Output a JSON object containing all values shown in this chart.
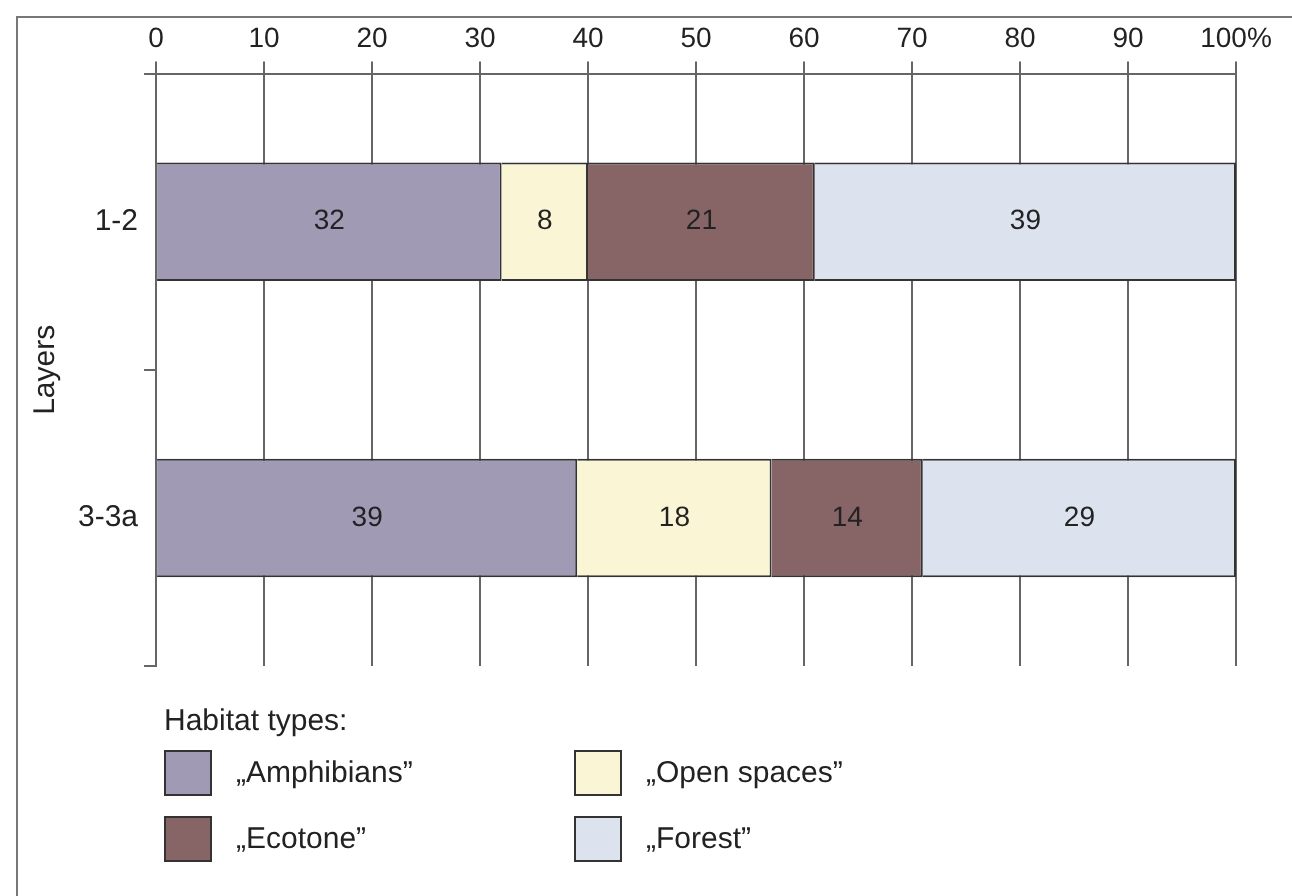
{
  "chart_data": {
    "type": "bar",
    "orientation": "horizontal",
    "stacked": true,
    "ylabel": "Layers",
    "legend_title": "Habitat types:",
    "categories": [
      "1-2",
      "3-3a"
    ],
    "series": [
      {
        "name": "„Amphibians”",
        "color": "#a09ab4",
        "values": [
          32,
          39
        ]
      },
      {
        "name": "„Open spaces”",
        "color": "#faf5d5",
        "values": [
          8,
          18
        ]
      },
      {
        "name": "„Ecotone”",
        "color": "#876567",
        "values": [
          21,
          14
        ]
      },
      {
        "name": "„Forest”",
        "color": "#dce3ee",
        "values": [
          39,
          29
        ]
      }
    ],
    "xlim": [
      0,
      100
    ],
    "xticks": [
      0,
      10,
      20,
      30,
      40,
      50,
      60,
      70,
      80,
      90,
      {
        "value": 100,
        "label": "100%"
      }
    ],
    "grid": "x",
    "data_labels": true,
    "legend": "bottom left"
  }
}
